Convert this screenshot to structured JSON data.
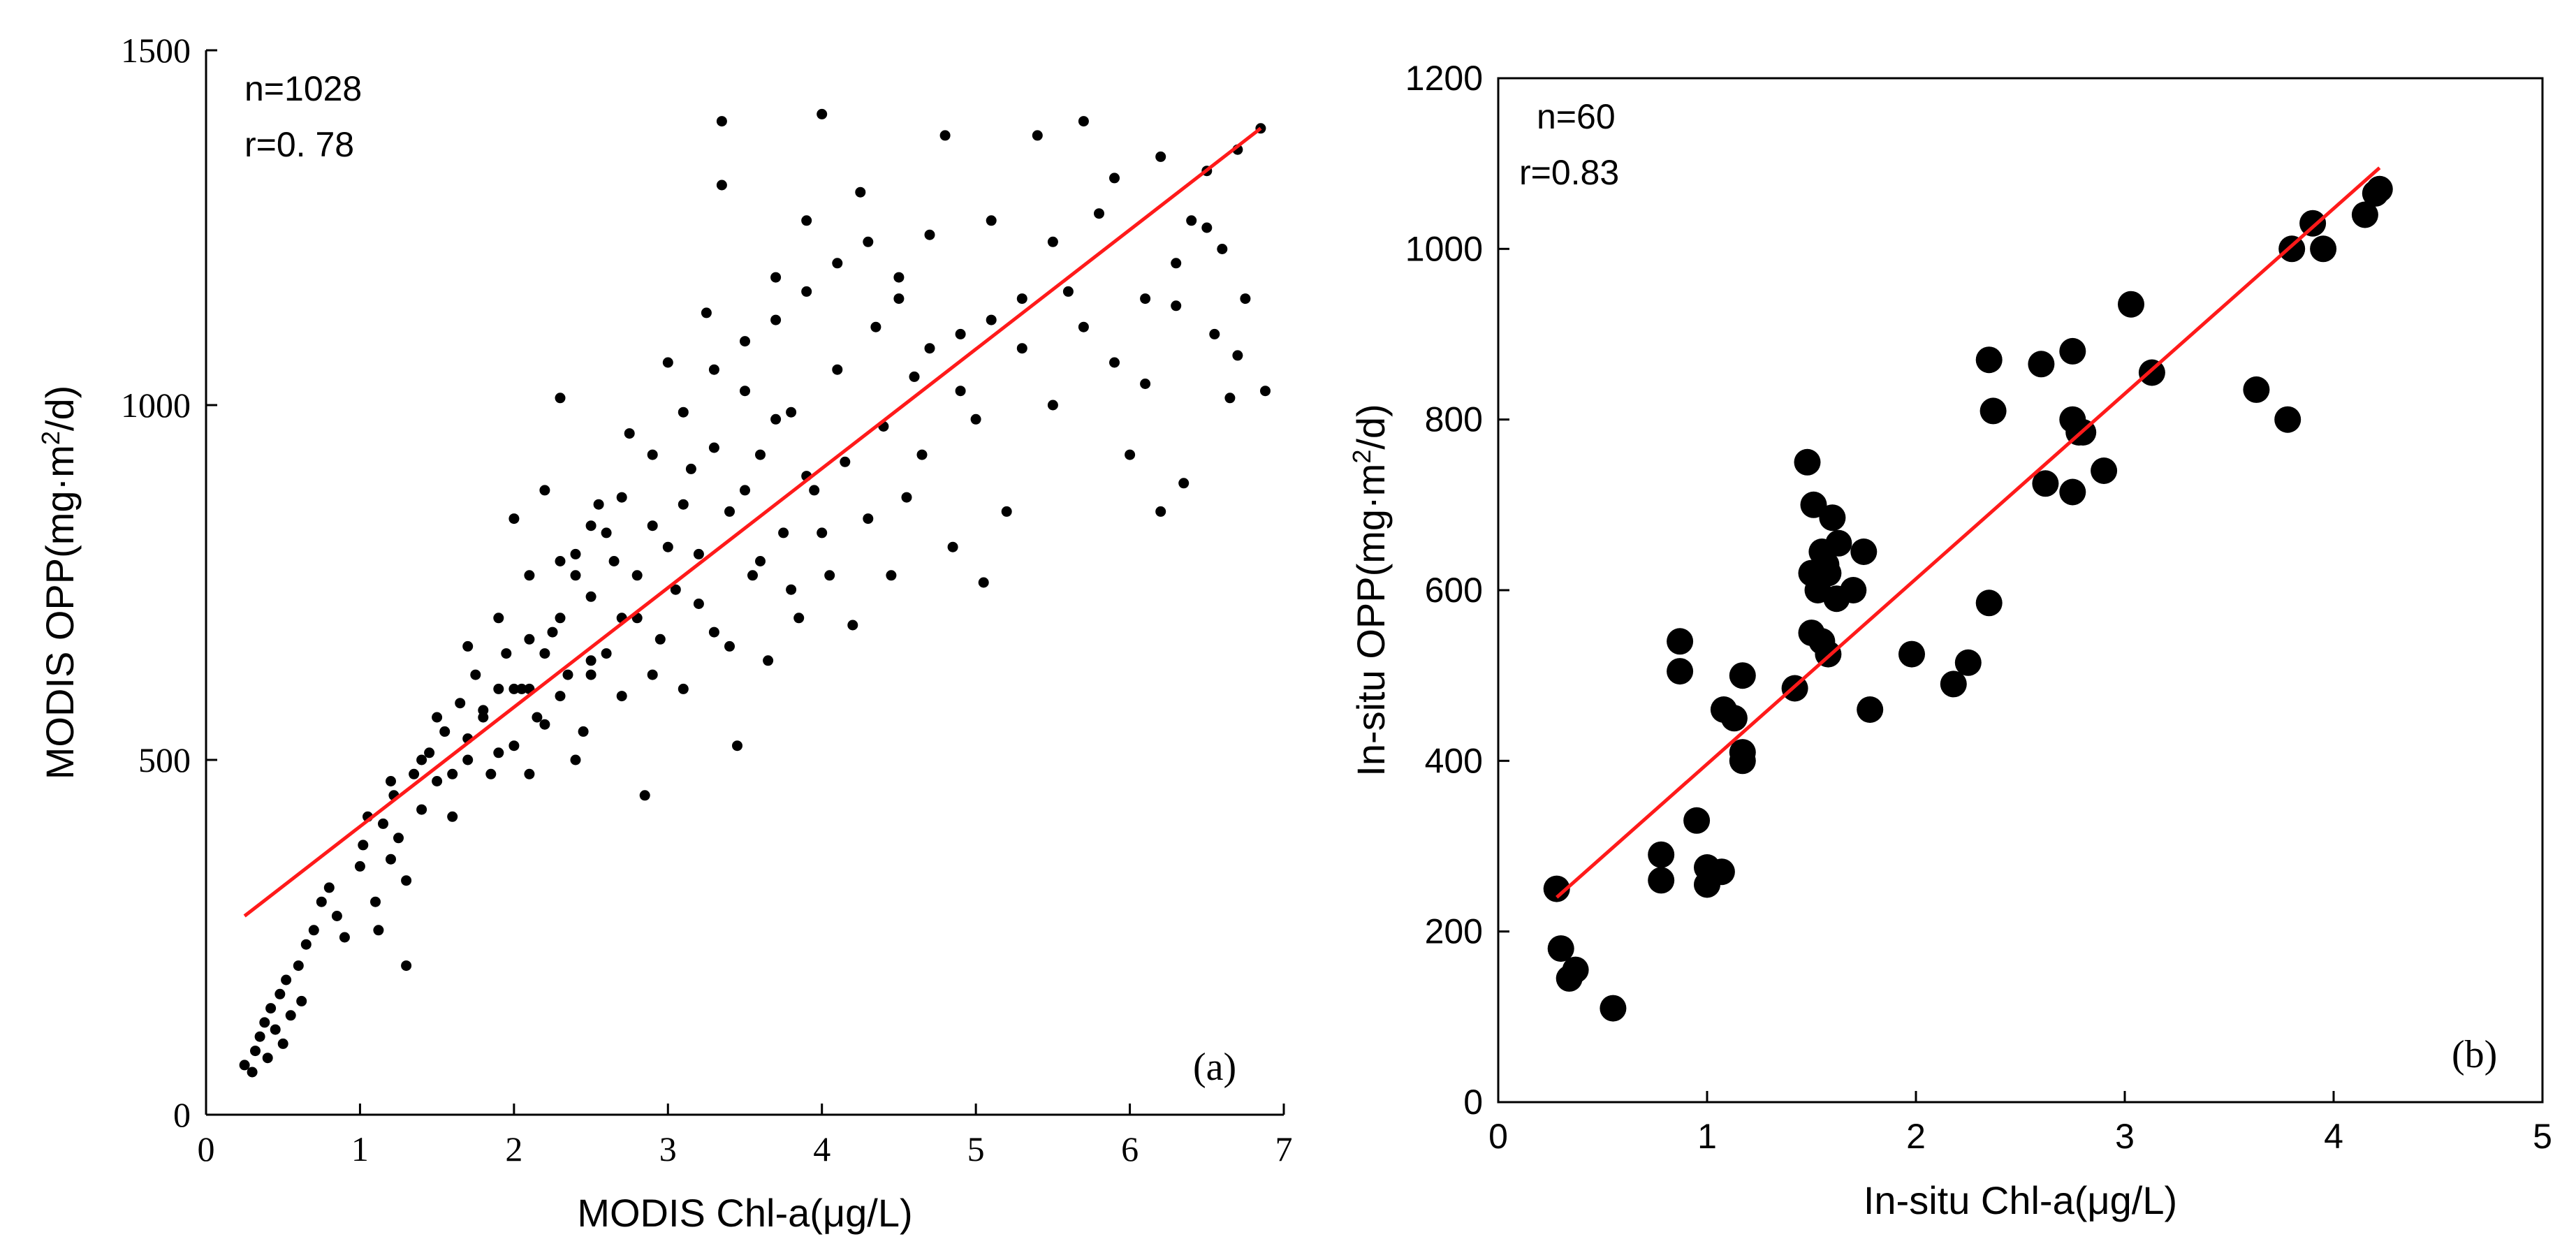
{
  "chart_data": [
    {
      "type": "scatter",
      "panel_label": "(a)",
      "xlabel": "MODIS Chl-a(μg/L)",
      "ylabel_parts": [
        "MODIS OPP(mg·m",
        "2",
        "/d)"
      ],
      "xlim": [
        0,
        7
      ],
      "ylim": [
        0,
        1500
      ],
      "xticks": [
        0,
        1,
        2,
        3,
        4,
        5,
        6,
        7
      ],
      "xtick_labels": [
        "0",
        "1",
        "2",
        "3",
        "4",
        "5",
        "6",
        "7"
      ],
      "yticks": [
        0,
        500,
        1000,
        1500
      ],
      "ytick_labels": [
        "0",
        "500",
        "1000",
        "1500"
      ],
      "stats": [
        "n=1028",
        "r=0. 78"
      ],
      "n_points": 1028,
      "fit_line": {
        "x": [
          0.25,
          6.85
        ],
        "y": [
          280,
          1390
        ]
      },
      "points": [
        [
          0.25,
          70
        ],
        [
          0.3,
          60
        ],
        [
          0.32,
          90
        ],
        [
          0.35,
          110
        ],
        [
          0.38,
          130
        ],
        [
          0.4,
          80
        ],
        [
          0.42,
          150
        ],
        [
          0.45,
          120
        ],
        [
          0.48,
          170
        ],
        [
          0.5,
          100
        ],
        [
          0.52,
          190
        ],
        [
          0.55,
          140
        ],
        [
          0.6,
          210
        ],
        [
          0.62,
          160
        ],
        [
          0.65,
          240
        ],
        [
          0.7,
          260
        ],
        [
          0.75,
          300
        ],
        [
          0.8,
          320
        ],
        [
          0.85,
          280
        ],
        [
          0.9,
          250
        ],
        [
          1.0,
          350
        ],
        [
          1.02,
          380
        ],
        [
          1.05,
          420
        ],
        [
          1.1,
          300
        ],
        [
          1.12,
          260
        ],
        [
          1.15,
          410
        ],
        [
          1.2,
          360
        ],
        [
          1.22,
          450
        ],
        [
          1.25,
          390
        ],
        [
          1.3,
          330
        ],
        [
          1.3,
          210
        ],
        [
          1.35,
          480
        ],
        [
          1.4,
          430
        ],
        [
          1.45,
          510
        ],
        [
          1.5,
          470
        ],
        [
          1.55,
          540
        ],
        [
          1.6,
          420
        ],
        [
          1.65,
          580
        ],
        [
          1.7,
          500
        ],
        [
          1.75,
          620
        ],
        [
          1.8,
          560
        ],
        [
          1.85,
          480
        ],
        [
          1.9,
          700
        ],
        [
          1.95,
          650
        ],
        [
          2.0,
          520
        ],
        [
          2.0,
          840
        ],
        [
          2.05,
          600
        ],
        [
          2.1,
          760
        ],
        [
          2.15,
          560
        ],
        [
          2.2,
          880
        ],
        [
          2.25,
          680
        ],
        [
          2.3,
          1010
        ],
        [
          2.35,
          620
        ],
        [
          2.4,
          790
        ],
        [
          2.45,
          540
        ],
        [
          2.5,
          730
        ],
        [
          2.55,
          860
        ],
        [
          2.6,
          650
        ],
        [
          2.65,
          780
        ],
        [
          2.7,
          590
        ],
        [
          2.75,
          960
        ],
        [
          2.8,
          700
        ],
        [
          2.85,
          450
        ],
        [
          2.9,
          830
        ],
        [
          2.95,
          670
        ],
        [
          3.0,
          1060
        ],
        [
          3.05,
          740
        ],
        [
          3.1,
          600
        ],
        [
          3.15,
          910
        ],
        [
          3.2,
          790
        ],
        [
          3.25,
          1130
        ],
        [
          3.3,
          680
        ],
        [
          3.35,
          1400
        ],
        [
          3.4,
          850
        ],
        [
          3.45,
          520
        ],
        [
          3.5,
          1020
        ],
        [
          3.55,
          760
        ],
        [
          3.6,
          930
        ],
        [
          3.65,
          640
        ],
        [
          3.7,
          1180
        ],
        [
          3.75,
          820
        ],
        [
          3.8,
          990
        ],
        [
          3.85,
          700
        ],
        [
          3.9,
          1260
        ],
        [
          3.95,
          880
        ],
        [
          4.0,
          1410
        ],
        [
          4.05,
          760
        ],
        [
          4.1,
          1050
        ],
        [
          4.15,
          920
        ],
        [
          4.2,
          690
        ],
        [
          4.25,
          1300
        ],
        [
          4.3,
          840
        ],
        [
          4.35,
          1110
        ],
        [
          4.4,
          970
        ],
        [
          4.45,
          760
        ],
        [
          4.5,
          1180
        ],
        [
          4.55,
          870
        ],
        [
          4.6,
          1040
        ],
        [
          4.65,
          930
        ],
        [
          4.7,
          1240
        ],
        [
          4.8,
          1380
        ],
        [
          4.85,
          800
        ],
        [
          4.9,
          1100
        ],
        [
          5.0,
          980
        ],
        [
          5.05,
          750
        ],
        [
          5.1,
          1260
        ],
        [
          5.2,
          850
        ],
        [
          5.3,
          1150
        ],
        [
          5.4,
          1380
        ],
        [
          5.5,
          1000
        ],
        [
          5.6,
          1160
        ],
        [
          5.7,
          1400
        ],
        [
          5.8,
          1270
        ],
        [
          5.9,
          1060
        ],
        [
          6.0,
          930
        ],
        [
          6.1,
          1150
        ],
        [
          6.2,
          1350
        ],
        [
          6.2,
          850
        ],
        [
          6.3,
          1200
        ],
        [
          6.35,
          890
        ],
        [
          6.4,
          1260
        ],
        [
          6.5,
          1330
        ],
        [
          6.55,
          1100
        ],
        [
          6.6,
          1220
        ],
        [
          6.65,
          1010
        ],
        [
          6.7,
          1360
        ],
        [
          6.75,
          1150
        ],
        [
          6.85,
          1390
        ],
        [
          6.88,
          1020
        ],
        [
          2.1,
          600
        ],
        [
          2.2,
          650
        ],
        [
          2.3,
          700
        ],
        [
          2.4,
          760
        ],
        [
          2.5,
          640
        ],
        [
          2.6,
          820
        ],
        [
          2.7,
          700
        ],
        [
          2.8,
          760
        ],
        [
          2.9,
          620
        ],
        [
          3.0,
          800
        ],
        [
          3.1,
          860
        ],
        [
          3.2,
          720
        ],
        [
          3.3,
          940
        ],
        [
          3.4,
          660
        ],
        [
          3.5,
          880
        ],
        [
          3.6,
          780
        ],
        [
          3.7,
          980
        ],
        [
          3.8,
          740
        ],
        [
          3.9,
          900
        ],
        [
          4.0,
          820
        ],
        [
          1.6,
          480
        ],
        [
          1.7,
          530
        ],
        [
          1.8,
          570
        ],
        [
          1.9,
          510
        ],
        [
          2.0,
          600
        ],
        [
          2.1,
          480
        ],
        [
          2.2,
          550
        ],
        [
          2.3,
          590
        ],
        [
          2.4,
          500
        ],
        [
          2.5,
          620
        ],
        [
          1.2,
          470
        ],
        [
          1.4,
          500
        ],
        [
          1.5,
          560
        ],
        [
          1.7,
          660
        ],
        [
          1.9,
          600
        ],
        [
          2.1,
          670
        ],
        [
          2.3,
          780
        ],
        [
          2.5,
          830
        ],
        [
          2.7,
          870
        ],
        [
          2.9,
          930
        ],
        [
          3.1,
          990
        ],
        [
          3.3,
          1050
        ],
        [
          3.5,
          1090
        ],
        [
          3.7,
          1120
        ],
        [
          3.9,
          1160
        ],
        [
          4.1,
          1200
        ],
        [
          4.3,
          1230
        ],
        [
          4.5,
          1150
        ],
        [
          4.7,
          1080
        ],
        [
          4.9,
          1020
        ],
        [
          5.1,
          1120
        ],
        [
          5.3,
          1080
        ],
        [
          5.5,
          1230
        ],
        [
          5.7,
          1110
        ],
        [
          5.9,
          1320
        ],
        [
          6.1,
          1030
        ],
        [
          6.3,
          1140
        ],
        [
          6.5,
          1250
        ],
        [
          6.7,
          1070
        ],
        [
          3.35,
          1310
        ]
      ]
    },
    {
      "type": "scatter",
      "panel_label": "(b)",
      "xlabel": "In-situ Chl-a(μg/L)",
      "ylabel_parts": [
        "In-situ OPP(mg·m",
        "2",
        "/d)"
      ],
      "xlim": [
        0,
        5
      ],
      "ylim": [
        0,
        1200
      ],
      "xticks": [
        0,
        1,
        2,
        3,
        4,
        5
      ],
      "xtick_labels": [
        "0",
        "1",
        "2",
        "3",
        "4",
        "5"
      ],
      "yticks": [
        0,
        200,
        400,
        600,
        800,
        1000,
        1200
      ],
      "ytick_labels": [
        "0",
        "200",
        "400",
        "600",
        "800",
        "1000",
        "1200"
      ],
      "stats": [
        "n=60",
        "r=0.83"
      ],
      "n_points": 60,
      "fit_line": {
        "x": [
          0.28,
          4.22
        ],
        "y": [
          240,
          1095
        ]
      },
      "points": [
        [
          0.28,
          250
        ],
        [
          0.3,
          180
        ],
        [
          0.34,
          145
        ],
        [
          0.37,
          155
        ],
        [
          0.55,
          110
        ],
        [
          0.78,
          290
        ],
        [
          0.78,
          260
        ],
        [
          0.87,
          540
        ],
        [
          0.87,
          505
        ],
        [
          0.95,
          330
        ],
        [
          1.0,
          275
        ],
        [
          1.0,
          255
        ],
        [
          1.07,
          270
        ],
        [
          1.08,
          460
        ],
        [
          1.13,
          450
        ],
        [
          1.17,
          500
        ],
        [
          1.17,
          410
        ],
        [
          1.17,
          400
        ],
        [
          1.42,
          485
        ],
        [
          1.48,
          750
        ],
        [
          1.5,
          620
        ],
        [
          1.5,
          550
        ],
        [
          1.51,
          700
        ],
        [
          1.53,
          600
        ],
        [
          1.55,
          540
        ],
        [
          1.55,
          645
        ],
        [
          1.57,
          630
        ],
        [
          1.58,
          620
        ],
        [
          1.58,
          525
        ],
        [
          1.6,
          685
        ],
        [
          1.62,
          590
        ],
        [
          1.63,
          655
        ],
        [
          1.7,
          600
        ],
        [
          1.75,
          645
        ],
        [
          1.78,
          460
        ],
        [
          1.98,
          525
        ],
        [
          2.18,
          490
        ],
        [
          2.25,
          515
        ],
        [
          2.35,
          870
        ],
        [
          2.35,
          585
        ],
        [
          2.37,
          810
        ],
        [
          2.6,
          865
        ],
        [
          2.62,
          725
        ],
        [
          2.75,
          880
        ],
        [
          2.75,
          715
        ],
        [
          2.75,
          800
        ],
        [
          2.78,
          785
        ],
        [
          2.8,
          785
        ],
        [
          2.9,
          740
        ],
        [
          3.03,
          935
        ],
        [
          3.13,
          855
        ],
        [
          3.63,
          835
        ],
        [
          3.78,
          800
        ],
        [
          3.8,
          1000
        ],
        [
          3.9,
          1030
        ],
        [
          3.95,
          1000
        ],
        [
          4.15,
          1040
        ],
        [
          4.2,
          1065
        ],
        [
          4.22,
          1070
        ],
        [
          1.52,
          620
        ]
      ]
    }
  ]
}
